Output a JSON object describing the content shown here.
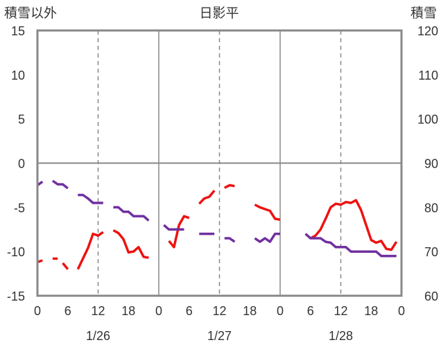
{
  "chart_data": {
    "type": "line",
    "title": "日影平",
    "ylabel_left": "積雪以外",
    "ylabel_right": "積雪",
    "left_axis": {
      "range": [
        -15,
        15
      ],
      "ticks": [
        -15,
        -10,
        -5,
        0,
        5,
        10,
        15
      ]
    },
    "right_axis": {
      "range": [
        60,
        120
      ],
      "ticks": [
        60,
        70,
        80,
        90,
        100,
        110,
        120
      ]
    },
    "x_axis": {
      "unit": "hour",
      "range": [
        0,
        72
      ],
      "tick_labels": [
        {
          "x": 0,
          "label": "0"
        },
        {
          "x": 6,
          "label": "6"
        },
        {
          "x": 12,
          "label": "12"
        },
        {
          "x": 18,
          "label": "18"
        },
        {
          "x": 24,
          "label": "0"
        },
        {
          "x": 30,
          "label": "6"
        },
        {
          "x": 36,
          "label": "12"
        },
        {
          "x": 42,
          "label": "18"
        },
        {
          "x": 48,
          "label": "0"
        },
        {
          "x": 54,
          "label": "6"
        },
        {
          "x": 60,
          "label": "12"
        },
        {
          "x": 66,
          "label": "18"
        },
        {
          "x": 72,
          "label": "0"
        }
      ],
      "dates": [
        {
          "x": 12,
          "label": "1/26"
        },
        {
          "x": 36,
          "label": "1/27"
        },
        {
          "x": 60,
          "label": "1/28"
        }
      ]
    },
    "grid": {
      "solid_x": [
        24,
        48
      ],
      "dashed_x": [
        12,
        36,
        60
      ],
      "horizontal_zero": true
    },
    "series": [
      {
        "color": "#ee1111",
        "axis": "left",
        "segments": [
          [
            [
              0,
              -11.2
            ],
            [
              1,
              -11.0
            ]
          ],
          [
            [
              3,
              -10.8
            ],
            [
              4,
              -10.8
            ]
          ],
          [
            [
              5,
              -11.3
            ],
            [
              6,
              -12.0
            ]
          ],
          [
            [
              8,
              -12.0
            ],
            [
              9,
              -10.8
            ],
            [
              10,
              -9.6
            ],
            [
              11,
              -8.0
            ],
            [
              12,
              -8.2
            ],
            [
              13,
              -7.8
            ]
          ],
          [
            [
              15,
              -7.6
            ],
            [
              16,
              -7.9
            ],
            [
              17,
              -8.6
            ],
            [
              18,
              -10.1
            ],
            [
              19,
              -10.0
            ],
            [
              20,
              -9.5
            ],
            [
              21,
              -10.6
            ],
            [
              22,
              -10.7
            ]
          ],
          [
            [
              26,
              -8.8
            ],
            [
              27,
              -9.5
            ],
            [
              28,
              -7.0
            ],
            [
              29,
              -6.0
            ],
            [
              30,
              -6.2
            ]
          ],
          [
            [
              32,
              -4.6
            ],
            [
              33,
              -4.0
            ],
            [
              34,
              -3.8
            ],
            [
              35,
              -3.1
            ]
          ],
          [
            [
              37,
              -2.8
            ],
            [
              38,
              -2.5
            ],
            [
              39,
              -2.6
            ]
          ],
          [
            [
              43,
              -4.7
            ],
            [
              44,
              -5.0
            ],
            [
              45,
              -5.2
            ],
            [
              46,
              -5.4
            ],
            [
              47,
              -6.3
            ],
            [
              48,
              -6.4
            ]
          ],
          [
            [
              54,
              -8.5
            ],
            [
              55,
              -8.2
            ],
            [
              56,
              -7.5
            ],
            [
              57,
              -6.3
            ],
            [
              58,
              -5.0
            ],
            [
              59,
              -4.6
            ],
            [
              60,
              -4.7
            ],
            [
              61,
              -4.4
            ],
            [
              62,
              -4.5
            ],
            [
              63,
              -4.2
            ],
            [
              64,
              -5.3
            ],
            [
              65,
              -7.0
            ],
            [
              66,
              -8.7
            ],
            [
              67,
              -9.0
            ],
            [
              68,
              -8.8
            ],
            [
              69,
              -9.7
            ],
            [
              70,
              -9.8
            ],
            [
              71,
              -8.9
            ]
          ]
        ]
      },
      {
        "color": "#7030a0",
        "axis": "right",
        "segments": [
          [
            [
              0,
              85
            ],
            [
              1,
              85.8
            ]
          ],
          [
            [
              3,
              86
            ],
            [
              4,
              85.2
            ],
            [
              5,
              85.2
            ],
            [
              6,
              84.3
            ]
          ],
          [
            [
              8,
              82.8
            ],
            [
              9,
              82.8
            ],
            [
              10,
              82.0
            ],
            [
              11,
              81.0
            ],
            [
              12,
              81.0
            ],
            [
              13,
              81.0
            ]
          ],
          [
            [
              15,
              80.0
            ],
            [
              16,
              80.0
            ],
            [
              17,
              79.0
            ],
            [
              18,
              79.0
            ],
            [
              19,
              78.0
            ],
            [
              20,
              78.0
            ],
            [
              21,
              78.0
            ],
            [
              22,
              77.0
            ]
          ],
          [
            [
              25,
              76.0
            ],
            [
              26,
              75.0
            ],
            [
              27,
              75.0
            ],
            [
              28,
              75.0
            ],
            [
              29,
              75.0
            ]
          ],
          [
            [
              32,
              74.0
            ],
            [
              33,
              74.0
            ],
            [
              34,
              74.0
            ],
            [
              35,
              74.0
            ]
          ],
          [
            [
              37,
              73.0
            ],
            [
              38,
              73.0
            ],
            [
              39,
              72.2
            ]
          ],
          [
            [
              43,
              73.0
            ],
            [
              44,
              72.2
            ],
            [
              45,
              73.0
            ],
            [
              46,
              72.2
            ],
            [
              47,
              74.0
            ],
            [
              48,
              74.0
            ]
          ],
          [
            [
              53,
              74.0
            ],
            [
              54,
              73.0
            ],
            [
              55,
              73.0
            ],
            [
              56,
              73.0
            ],
            [
              57,
              72.2
            ],
            [
              58,
              72.0
            ],
            [
              59,
              71.0
            ],
            [
              60,
              71.0
            ],
            [
              61,
              71.0
            ],
            [
              62,
              70.0
            ],
            [
              63,
              70.0
            ],
            [
              64,
              70.0
            ],
            [
              65,
              70.0
            ],
            [
              66,
              70.0
            ],
            [
              67,
              70.0
            ],
            [
              68,
              69.0
            ],
            [
              69,
              69.0
            ],
            [
              70,
              69.0
            ],
            [
              71,
              69.0
            ]
          ]
        ]
      }
    ]
  }
}
